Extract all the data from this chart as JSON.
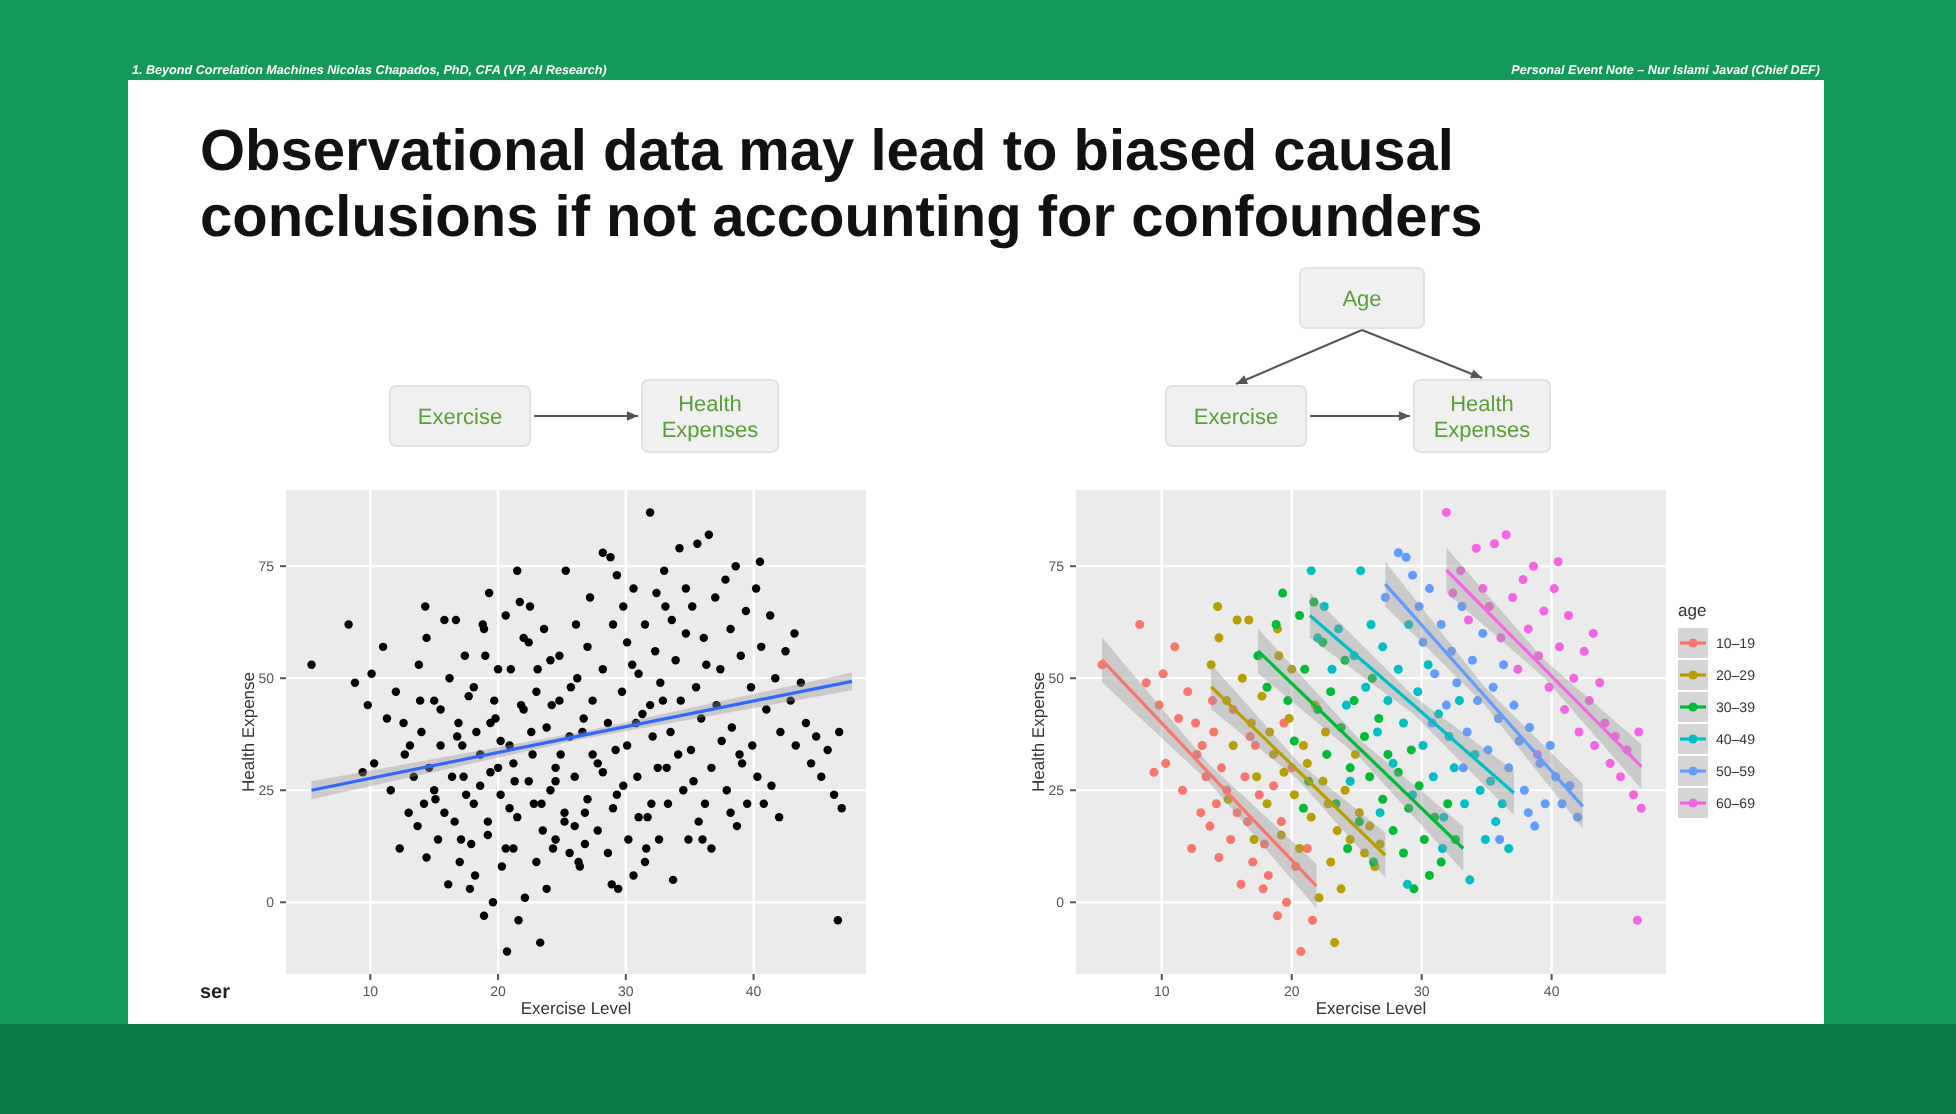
{
  "chart_data": [
    {
      "type": "scatter",
      "title": "Observational data may lead to biased causal conclusions if not accounting for confounders",
      "xlabel": "Exercise Level",
      "ylabel": "Health Expense",
      "xlim": [
        3.4,
        48.8
      ],
      "xticks": [
        10,
        20,
        30,
        40
      ],
      "ylim": [
        -16,
        92
      ],
      "yticks": [
        0,
        25,
        50,
        75
      ],
      "grid": true,
      "marker": "circle",
      "annotations": [
        "1. Beyond Correlation Machines Nicolas Chapados, PhD, CFA (VP, AI Research)",
        "Personal Event Note – Nur Islami Javad (Chief DEF)",
        "ser",
        "Exercise",
        "Health Expenses"
      ],
      "series": [
        {
          "color": "#000000",
          "x": [
            5.4,
            8.3,
            8.8,
            9.4,
            9.8,
            10.1,
            10.3,
            11,
            11.3,
            11.6,
            12,
            12.3,
            12.6,
            13,
            13.1,
            13.4,
            13.7,
            14,
            14.2,
            14.4,
            14.6,
            15,
            15.3,
            15.5,
            15.8,
            16.1,
            16.4,
            16.6,
            17,
            17.2,
            17.5,
            17.9,
            18.2,
            18.6,
            18.9,
            19.2,
            19.6,
            20,
            20.3,
            20.7,
            21.2,
            21.6,
            19.4,
            17.8,
            16.8,
            13.9,
            12.7,
            13.8,
            14.3,
            14.4,
            15,
            15.5,
            15.8,
            16.2,
            16.7,
            16.9,
            17.3,
            17.7,
            18.1,
            18.3,
            18.6,
            18.9,
            19.2,
            19.4,
            19.8,
            20,
            20.2,
            20.6,
            20.9,
            21.2,
            21.5,
            21.8,
            22.1,
            22.4,
            22.8,
            23,
            23.3,
            23.5,
            23.8,
            24.1,
            24.5,
            24.9,
            25.2,
            25.6,
            26,
            26.4,
            26.8,
            15.1,
            17.1,
            19,
            22.6,
            17.4,
            18.1,
            18.8,
            19.3,
            19.7,
            20.2,
            20.6,
            21,
            21.3,
            21.7,
            22,
            22.4,
            22.7,
            23,
            23.4,
            23.8,
            24.1,
            24.5,
            24.8,
            25.2,
            25.6,
            26,
            26.3,
            26.7,
            27,
            27.4,
            27.8,
            28.2,
            28.6,
            29,
            29.4,
            29.8,
            30.2,
            30.6,
            31,
            31.5,
            32,
            32.6,
            24.3,
            20.9,
            26.2,
            29.2,
            21.5,
            22,
            22.5,
            23.1,
            23.6,
            24.2,
            24.8,
            25.3,
            25.7,
            26.1,
            26.6,
            27,
            27.4,
            27.8,
            28.2,
            28.6,
            29,
            29.3,
            29.7,
            30.1,
            30.5,
            30.9,
            31.3,
            31.7,
            32.1,
            32.5,
            32.9,
            33.3,
            33.7,
            34.1,
            34.5,
            34.9,
            35.3,
            35.7,
            36.2,
            36.7,
            28.9,
            26.8,
            31.6,
            24.5,
            27.2,
            28.2,
            28.8,
            29.3,
            29.8,
            30.1,
            30.6,
            31,
            31.5,
            31.9,
            32.3,
            32.7,
            33.1,
            33.5,
            33.9,
            34.3,
            34.7,
            35.1,
            35.5,
            35.9,
            36.3,
            36.7,
            37.1,
            37.5,
            37.9,
            38.3,
            38.7,
            39.1,
            39.5,
            39.9,
            40.3,
            40.8,
            41.4,
            42,
            38.2,
            36,
            33.2,
            30.8,
            31.9,
            32.4,
            33,
            33.6,
            34.2,
            34.7,
            35.2,
            35.6,
            36.1,
            36.5,
            37,
            37.4,
            37.8,
            38.2,
            38.6,
            39,
            39.4,
            39.8,
            40.2,
            40.6,
            41,
            41.3,
            41.7,
            42.1,
            42.5,
            42.9,
            43.3,
            43.7,
            44.1,
            44.5,
            44.9,
            45.3,
            45.8,
            46.3,
            46.7,
            46.9,
            46.6,
            40.5,
            38.9,
            43.2
          ],
          "values": [
            53,
            62,
            49,
            29,
            44,
            51,
            31,
            57,
            41,
            25,
            47,
            12,
            40,
            20,
            35,
            28,
            17,
            38,
            22,
            10,
            30,
            25,
            14,
            43,
            20,
            4,
            28,
            18,
            9,
            35,
            24,
            13,
            6,
            26,
            -3,
            18,
            0,
            30,
            8,
            -11,
            12,
            -4,
            40,
            3,
            37,
            45,
            33,
            53,
            66,
            59,
            45,
            35,
            63,
            50,
            63,
            40,
            28,
            46,
            22,
            38,
            33,
            61,
            15,
            29,
            41,
            52,
            24,
            12,
            35,
            31,
            19,
            44,
            1,
            27,
            22,
            9,
            -9,
            16,
            3,
            25,
            14,
            33,
            20,
            11,
            17,
            8,
            13,
            23,
            14,
            55,
            38,
            55,
            48,
            62,
            69,
            45,
            36,
            64,
            52,
            27,
            67,
            43,
            58,
            33,
            47,
            22,
            39,
            54,
            30,
            45,
            18,
            37,
            28,
            9,
            41,
            23,
            33,
            16,
            29,
            11,
            21,
            3,
            26,
            14,
            6,
            19,
            9,
            22,
            14,
            12,
            21,
            50,
            34,
            74,
            59,
            66,
            52,
            61,
            44,
            55,
            74,
            48,
            62,
            38,
            57,
            45,
            31,
            52,
            40,
            62,
            24,
            47,
            35,
            53,
            28,
            42,
            19,
            37,
            30,
            45,
            22,
            5,
            33,
            25,
            14,
            27,
            18,
            22,
            12,
            4,
            20,
            12,
            27,
            68,
            78,
            77,
            73,
            66,
            58,
            70,
            51,
            62,
            44,
            56,
            49,
            66,
            38,
            54,
            45,
            60,
            34,
            48,
            41,
            53,
            30,
            44,
            36,
            25,
            39,
            17,
            31,
            22,
            35,
            28,
            22,
            26,
            19,
            20,
            14,
            30,
            40,
            87,
            69,
            74,
            63,
            79,
            70,
            66,
            80,
            59,
            82,
            68,
            52,
            72,
            61,
            75,
            55,
            65,
            48,
            70,
            57,
            43,
            64,
            50,
            38,
            56,
            45,
            35,
            49,
            40,
            31,
            37,
            28,
            34,
            24,
            38,
            21,
            -4,
            76,
            33,
            60
          ]
        },
        {
          "type": "line",
          "marker": "none",
          "color": "#3366ff",
          "x": [
            5.4,
            26.5,
            47.7
          ],
          "values": [
            25,
            37.2,
            49.3
          ],
          "lower": [
            23,
            36.4,
            47.3
          ],
          "upper": [
            27,
            38,
            51.3
          ]
        }
      ]
    },
    {
      "type": "scatter",
      "xlabel": "Exercise Level",
      "ylabel": "Health Expense",
      "xlim": [
        3.4,
        48.8
      ],
      "xticks": [
        10,
        20,
        30,
        40
      ],
      "ylim": [
        -16,
        92
      ],
      "yticks": [
        0,
        25,
        50,
        75
      ],
      "grid": true,
      "marker": "circle",
      "legend": "right",
      "legend_title": "age",
      "annotations": [
        "Age",
        "Exercise",
        "Health Expenses"
      ],
      "series": [
        {
          "name": "10–19",
          "color": "#f8766d",
          "x": [
            5.4,
            8.3,
            8.8,
            9.4,
            9.8,
            10.1,
            10.3,
            11,
            11.3,
            11.6,
            12,
            12.3,
            12.6,
            13,
            13.1,
            13.4,
            13.7,
            14,
            14.2,
            14.4,
            14.6,
            15,
            15.3,
            15.5,
            15.8,
            16.1,
            16.4,
            16.6,
            17,
            17.2,
            17.5,
            17.9,
            18.2,
            18.6,
            18.9,
            19.2,
            19.6,
            20,
            20.3,
            20.7,
            21.2,
            21.6,
            19.4,
            17.8,
            16.8,
            13.9,
            12.7
          ],
          "values": [
            53,
            62,
            49,
            29,
            44,
            51,
            31,
            57,
            41,
            25,
            47,
            12,
            40,
            20,
            35,
            28,
            17,
            38,
            22,
            10,
            30,
            25,
            14,
            43,
            20,
            4,
            28,
            18,
            9,
            35,
            24,
            13,
            6,
            26,
            -3,
            18,
            0,
            30,
            8,
            -11,
            12,
            -4,
            40,
            3,
            37,
            45,
            33
          ]
        },
        {
          "name": "20–29",
          "color": "#b79f00",
          "x": [
            13.8,
            14.3,
            14.4,
            15,
            15.5,
            15.8,
            16.2,
            16.7,
            16.9,
            17.3,
            17.7,
            18.1,
            18.3,
            18.6,
            18.9,
            19.2,
            19.4,
            19.8,
            20,
            20.2,
            20.6,
            20.9,
            21.2,
            21.5,
            21.8,
            22.1,
            22.4,
            22.8,
            23,
            23.3,
            23.5,
            23.8,
            24.1,
            24.5,
            24.9,
            25.2,
            25.6,
            26,
            26.4,
            26.8,
            15.1,
            17.1,
            19,
            22.6
          ],
          "values": [
            53,
            66,
            59,
            45,
            35,
            63,
            50,
            63,
            40,
            28,
            46,
            22,
            38,
            33,
            61,
            15,
            29,
            41,
            52,
            24,
            12,
            35,
            31,
            19,
            44,
            1,
            27,
            22,
            9,
            -9,
            16,
            3,
            25,
            14,
            33,
            20,
            11,
            17,
            8,
            13,
            23,
            14,
            55,
            38
          ]
        },
        {
          "name": "30–39",
          "color": "#00ba38",
          "x": [
            17.4,
            18.1,
            18.8,
            19.3,
            19.7,
            20.2,
            20.6,
            21,
            21.3,
            21.7,
            22,
            22.4,
            22.7,
            23,
            23.4,
            23.8,
            24.1,
            24.5,
            24.8,
            25.2,
            25.6,
            26,
            26.3,
            26.7,
            27,
            27.4,
            27.8,
            28.2,
            28.6,
            29,
            29.4,
            29.8,
            30.2,
            30.6,
            31,
            31.5,
            32,
            32.6,
            24.3,
            20.9,
            26.2,
            29.2
          ],
          "values": [
            55,
            48,
            62,
            69,
            45,
            36,
            64,
            52,
            27,
            67,
            43,
            58,
            33,
            47,
            22,
            39,
            54,
            30,
            45,
            18,
            37,
            28,
            9,
            41,
            23,
            33,
            16,
            29,
            11,
            21,
            3,
            26,
            14,
            6,
            19,
            9,
            22,
            14,
            12,
            21,
            50,
            34
          ]
        },
        {
          "name": "40–49",
          "color": "#00bfc4",
          "x": [
            21.5,
            22,
            22.5,
            23.1,
            23.6,
            24.2,
            24.8,
            25.3,
            25.7,
            26.1,
            26.6,
            27,
            27.4,
            27.8,
            28.2,
            28.6,
            29,
            29.3,
            29.7,
            30.1,
            30.5,
            30.9,
            31.3,
            31.7,
            32.1,
            32.5,
            32.9,
            33.3,
            33.7,
            34.1,
            34.5,
            34.9,
            35.3,
            35.7,
            36.2,
            36.7,
            28.9,
            26.8,
            31.6,
            24.5
          ],
          "values": [
            74,
            59,
            66,
            52,
            61,
            44,
            55,
            74,
            48,
            62,
            38,
            57,
            45,
            31,
            52,
            40,
            62,
            24,
            47,
            35,
            53,
            28,
            42,
            19,
            37,
            30,
            45,
            22,
            5,
            33,
            25,
            14,
            27,
            18,
            22,
            12,
            4,
            20,
            12,
            27
          ]
        },
        {
          "name": "50–59",
          "color": "#619cff",
          "x": [
            27.2,
            28.2,
            28.8,
            29.3,
            29.8,
            30.1,
            30.6,
            31,
            31.5,
            31.9,
            32.3,
            32.7,
            33.1,
            33.5,
            33.9,
            34.3,
            34.7,
            35.1,
            35.5,
            35.9,
            36.3,
            36.7,
            37.1,
            37.5,
            37.9,
            38.3,
            38.7,
            39.1,
            39.5,
            39.9,
            40.3,
            40.8,
            41.4,
            42,
            38.2,
            36,
            33.2,
            30.8
          ],
          "values": [
            68,
            78,
            77,
            73,
            66,
            58,
            70,
            51,
            62,
            44,
            56,
            49,
            66,
            38,
            54,
            45,
            60,
            34,
            48,
            41,
            53,
            30,
            44,
            36,
            25,
            39,
            17,
            31,
            22,
            35,
            28,
            22,
            26,
            19,
            20,
            14,
            30,
            40
          ]
        },
        {
          "name": "60–69",
          "color": "#f564e3",
          "x": [
            31.9,
            32.4,
            33,
            33.6,
            34.2,
            34.7,
            35.2,
            35.6,
            36.1,
            36.5,
            37,
            37.4,
            37.8,
            38.2,
            38.6,
            39,
            39.4,
            39.8,
            40.2,
            40.6,
            41,
            41.3,
            41.7,
            42.1,
            42.5,
            42.9,
            43.3,
            43.7,
            44.1,
            44.5,
            44.9,
            45.3,
            45.8,
            46.3,
            46.7,
            46.9,
            46.6,
            40.5,
            38.9,
            43.2
          ],
          "values": [
            87,
            69,
            74,
            63,
            79,
            70,
            66,
            80,
            59,
            82,
            68,
            52,
            72,
            61,
            75,
            55,
            65,
            48,
            70,
            57,
            43,
            64,
            50,
            38,
            56,
            45,
            35,
            49,
            40,
            31,
            37,
            28,
            34,
            24,
            38,
            21,
            -4,
            76,
            33,
            60
          ]
        },
        {
          "type": "line",
          "marker": "none",
          "color": "#f8766d",
          "x": [
            5.4,
            13.6,
            21.9
          ],
          "values": [
            54.1,
            28.9,
            3.6
          ],
          "lower": [
            49.1,
            26.9,
            -1.4
          ],
          "upper": [
            59.1,
            30.9,
            8.6
          ]
        },
        {
          "type": "line",
          "marker": "none",
          "color": "#b79f00",
          "x": [
            13.8,
            20.5,
            27.2
          ],
          "values": [
            48.1,
            29.3,
            10.5
          ],
          "lower": [
            43.1,
            27.3,
            5.5
          ],
          "upper": [
            53.1,
            31.3,
            15.5
          ]
        },
        {
          "type": "line",
          "marker": "none",
          "color": "#00ba38",
          "x": [
            17.4,
            25.3,
            33.2
          ],
          "values": [
            56.1,
            34.1,
            12
          ],
          "lower": [
            51.1,
            32.1,
            7
          ],
          "upper": [
            61.1,
            36.1,
            17
          ]
        },
        {
          "type": "line",
          "marker": "none",
          "color": "#00bfc4",
          "x": [
            21.4,
            29.3,
            37.1
          ],
          "values": [
            64,
            44.2,
            24.4
          ],
          "lower": [
            59,
            42.2,
            19.4
          ],
          "upper": [
            69,
            46.2,
            29.4
          ]
        },
        {
          "type": "line",
          "marker": "none",
          "color": "#619cff",
          "x": [
            27.2,
            34.8,
            42.4
          ],
          "values": [
            71,
            46.2,
            21.4
          ],
          "lower": [
            66,
            44.2,
            16.4
          ],
          "upper": [
            76,
            48.2,
            26.4
          ]
        },
        {
          "type": "line",
          "marker": "none",
          "color": "#f564e3",
          "x": [
            31.9,
            39.4,
            46.9
          ],
          "values": [
            74.1,
            52.2,
            30.3
          ],
          "lower": [
            69.1,
            50.2,
            25.3
          ],
          "upper": [
            79.1,
            54.2,
            35.3
          ]
        }
      ]
    }
  ]
}
